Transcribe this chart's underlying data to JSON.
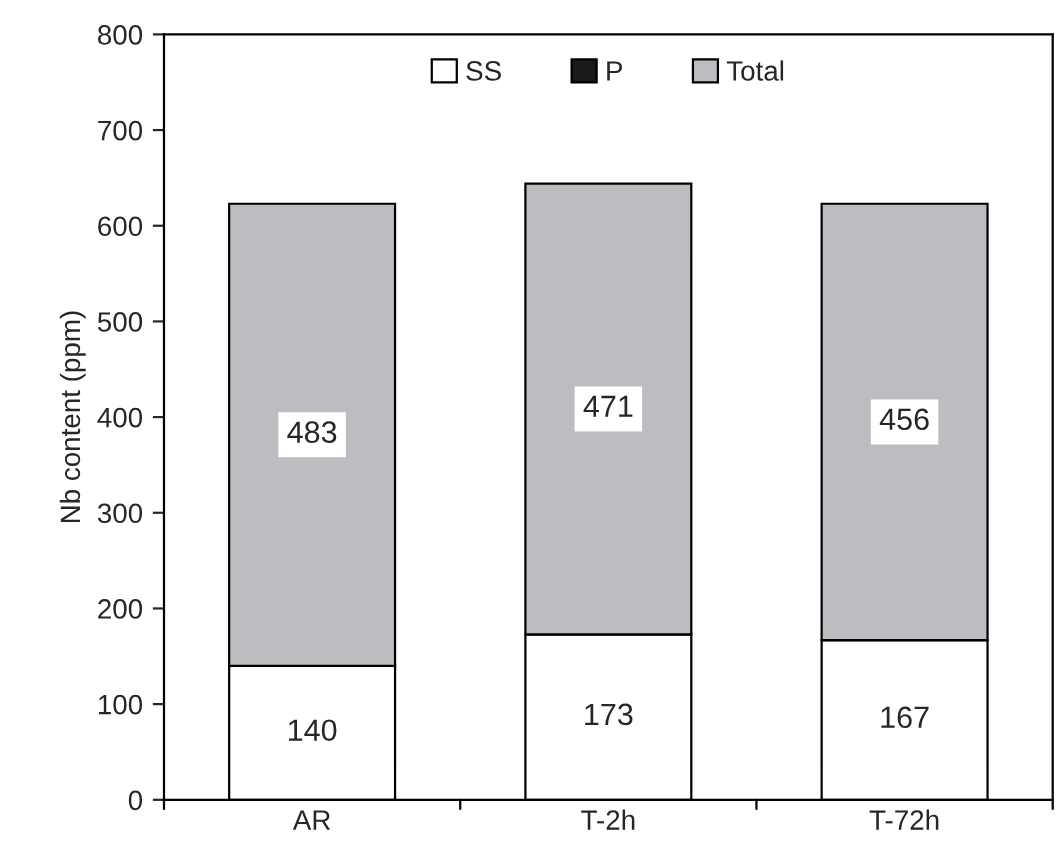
{
  "chart_data": {
    "type": "bar",
    "ylabel": "Nb content (ppm)",
    "categories": [
      "AR",
      "T-2h",
      "T-72h"
    ],
    "stacked": true,
    "ylim": [
      0,
      800
    ],
    "yticks": [
      0,
      100,
      200,
      300,
      400,
      500,
      600,
      700,
      800
    ],
    "grid": false,
    "legend": "top",
    "series": [
      {
        "name": "SS",
        "color": "#ffffff",
        "values": [
          140,
          173,
          167
        ],
        "value_labels": [
          "140",
          "173",
          "167"
        ]
      },
      {
        "name": "P",
        "color": "#1a1a1a",
        "values": [
          0,
          0,
          0
        ]
      },
      {
        "name": "Total",
        "color": "#bcbdc1",
        "values": [
          483,
          471,
          456
        ],
        "value_labels": [
          "483",
          "471",
          "456"
        ]
      }
    ]
  }
}
